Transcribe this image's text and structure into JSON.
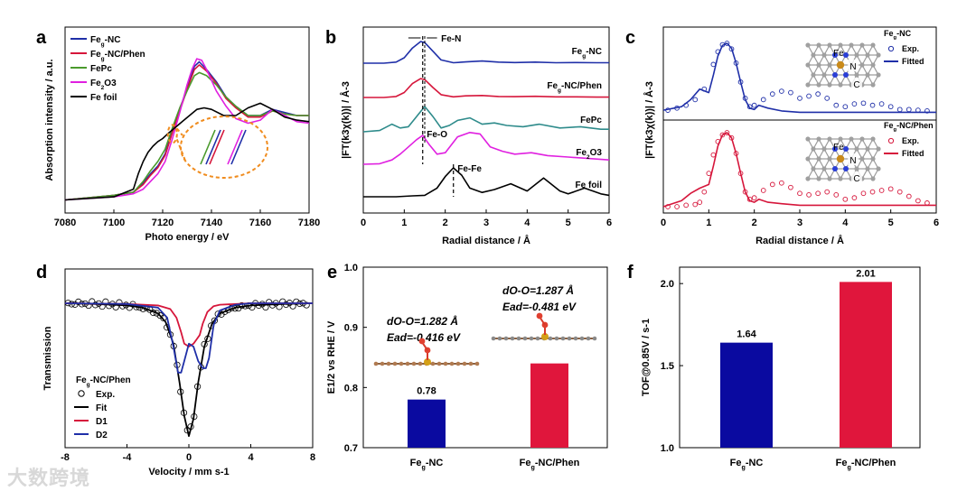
{
  "watermark": "大数跨境",
  "chart_data": [
    {
      "panel": "a",
      "type": "line",
      "xlabel": "Photo energy / eV",
      "ylabel": "Absorption intensity / a.u.",
      "xlim": [
        7080,
        7180
      ],
      "xticks": [
        7080,
        7100,
        7120,
        7140,
        7160,
        7180
      ],
      "legend_position": "top-left",
      "series": [
        {
          "name": "Feg-NC",
          "color": "#1f2fa8",
          "x": [
            7080,
            7100,
            7108,
            7112,
            7115,
            7118,
            7121,
            7124,
            7127,
            7130,
            7133,
            7135,
            7138,
            7142,
            7146,
            7150,
            7155,
            7160,
            7165,
            7170,
            7175,
            7180
          ],
          "y": [
            0.05,
            0.08,
            0.1,
            0.16,
            0.22,
            0.27,
            0.35,
            0.5,
            0.64,
            0.78,
            0.92,
            0.95,
            0.9,
            0.82,
            0.72,
            0.66,
            0.6,
            0.6,
            0.64,
            0.62,
            0.6,
            0.6
          ]
        },
        {
          "name": "Feg-NC/Phen",
          "color": "#d6163b",
          "x": [
            7080,
            7100,
            7108,
            7112,
            7115,
            7118,
            7121,
            7124,
            7127,
            7130,
            7133,
            7135,
            7138,
            7142,
            7146,
            7150,
            7155,
            7160,
            7165,
            7170,
            7175,
            7180
          ],
          "y": [
            0.05,
            0.08,
            0.1,
            0.15,
            0.21,
            0.26,
            0.34,
            0.49,
            0.63,
            0.77,
            0.9,
            0.93,
            0.89,
            0.81,
            0.71,
            0.65,
            0.59,
            0.59,
            0.63,
            0.61,
            0.6,
            0.6
          ]
        },
        {
          "name": "FePc",
          "color": "#4a9a2c",
          "x": [
            7080,
            7100,
            7108,
            7112,
            7115,
            7118,
            7121,
            7124,
            7127,
            7130,
            7133,
            7135,
            7138,
            7142,
            7146,
            7150,
            7155,
            7160,
            7165,
            7170,
            7175,
            7180
          ],
          "y": [
            0.05,
            0.08,
            0.1,
            0.17,
            0.24,
            0.3,
            0.38,
            0.52,
            0.65,
            0.76,
            0.86,
            0.88,
            0.86,
            0.8,
            0.72,
            0.66,
            0.6,
            0.6,
            0.63,
            0.61,
            0.6,
            0.6
          ]
        },
        {
          "name": "Fe2O3",
          "color": "#e020e0",
          "x": [
            7080,
            7100,
            7108,
            7112,
            7115,
            7118,
            7121,
            7124,
            7127,
            7130,
            7132,
            7134,
            7136,
            7138,
            7142,
            7146,
            7150,
            7155,
            7160,
            7165,
            7170,
            7175,
            7180
          ],
          "y": [
            0.05,
            0.07,
            0.09,
            0.12,
            0.17,
            0.22,
            0.3,
            0.45,
            0.62,
            0.8,
            0.9,
            0.97,
            0.96,
            0.9,
            0.76,
            0.66,
            0.58,
            0.55,
            0.57,
            0.64,
            0.6,
            0.56,
            0.55
          ]
        },
        {
          "name": "Fe foil",
          "color": "#000000",
          "x": [
            7080,
            7100,
            7108,
            7110,
            7112,
            7114,
            7116,
            7118,
            7120,
            7122,
            7125,
            7128,
            7131,
            7134,
            7137,
            7140,
            7145,
            7150,
            7155,
            7160,
            7165,
            7170,
            7175,
            7180
          ],
          "y": [
            0.05,
            0.07,
            0.12,
            0.22,
            0.3,
            0.36,
            0.4,
            0.43,
            0.45,
            0.48,
            0.52,
            0.56,
            0.6,
            0.64,
            0.65,
            0.64,
            0.6,
            0.6,
            0.65,
            0.68,
            0.64,
            0.59,
            0.57,
            0.56
          ]
        }
      ],
      "inset_annotation": true
    },
    {
      "panel": "b",
      "type": "line",
      "xlabel": "Radial distance / Å",
      "ylabel": "|FT(k3χ(k))| / Å-3",
      "xlim": [
        0,
        6
      ],
      "xticks": [
        0,
        1,
        2,
        3,
        4,
        5,
        6
      ],
      "annotations": [
        "Fe-N",
        "Fe-O",
        "Fe-Fe"
      ],
      "series": [
        {
          "name": "Feg-NC",
          "color": "#1f2fa8",
          "x": [
            0,
            0.5,
            0.8,
            1.0,
            1.2,
            1.4,
            1.5,
            1.7,
            1.9,
            2.2,
            2.5,
            2.9,
            3.3,
            3.7,
            4.2,
            4.7,
            5.2,
            5.7,
            6.0
          ],
          "y": [
            0,
            0,
            0.05,
            0.25,
            0.7,
            1.0,
            0.95,
            0.55,
            0.15,
            0.02,
            0.06,
            0.1,
            0.05,
            0.03,
            0.05,
            0.02,
            0.03,
            0.02,
            0.02
          ]
        },
        {
          "name": "Feg-NC/Phen",
          "color": "#d6163b",
          "x": [
            0,
            0.5,
            0.8,
            1.0,
            1.2,
            1.4,
            1.5,
            1.7,
            1.9,
            2.2,
            2.5,
            2.9,
            3.3,
            3.7,
            4.2,
            4.7,
            5.2,
            5.7,
            6.0
          ],
          "y": [
            0,
            0,
            0.05,
            0.25,
            0.7,
            0.95,
            0.9,
            0.5,
            0.14,
            0.03,
            0.08,
            0.1,
            0.05,
            0.04,
            0.06,
            0.03,
            0.03,
            0.02,
            0.02
          ]
        },
        {
          "name": "FePc",
          "color": "#2e8b8b",
          "x": [
            0,
            0.4,
            0.7,
            0.9,
            1.1,
            1.3,
            1.5,
            1.7,
            1.9,
            2.1,
            2.3,
            2.6,
            2.9,
            3.2,
            3.5,
            3.9,
            4.3,
            4.8,
            5.3,
            5.8,
            6.0
          ],
          "y": [
            0,
            0.05,
            0.3,
            0.15,
            0.2,
            0.6,
            1.0,
            0.6,
            0.15,
            0.25,
            0.45,
            0.55,
            0.3,
            0.35,
            0.25,
            0.2,
            0.3,
            0.15,
            0.2,
            0.1,
            0.1
          ]
        },
        {
          "name": "Fe2O3",
          "color": "#e020e0",
          "x": [
            0,
            0.4,
            0.7,
            0.9,
            1.1,
            1.3,
            1.45,
            1.6,
            1.8,
            2.0,
            2.3,
            2.6,
            2.85,
            3.1,
            3.4,
            3.7,
            4.1,
            4.5,
            5.0,
            5.5,
            6.0
          ],
          "y": [
            0,
            0.02,
            0.15,
            0.35,
            0.6,
            0.85,
            1.0,
            0.7,
            0.35,
            0.4,
            0.95,
            1.1,
            1.05,
            0.6,
            0.45,
            0.35,
            0.4,
            0.3,
            0.25,
            0.2,
            0.15
          ]
        },
        {
          "name": "Fe foil",
          "color": "#000000",
          "x": [
            0,
            0.8,
            1.2,
            1.5,
            1.8,
            2.0,
            2.2,
            2.4,
            2.6,
            2.9,
            3.2,
            3.6,
            4.0,
            4.4,
            4.8,
            5.0,
            5.4,
            5.8,
            6.0
          ],
          "y": [
            0,
            0,
            0.03,
            0.05,
            0.3,
            0.7,
            1.0,
            0.75,
            0.3,
            0.15,
            0.25,
            0.45,
            0.2,
            0.65,
            0.2,
            0.1,
            0.3,
            0.1,
            0.05
          ]
        }
      ]
    },
    {
      "panel": "c",
      "type": "line",
      "xlabel": "Radial distance / Å",
      "ylabel": "|FT(k3χ(k))| / Å-3",
      "xlim": [
        0,
        6
      ],
      "xticks": [
        0,
        1,
        2,
        3,
        4,
        5,
        6
      ],
      "subpanels": [
        {
          "title": "Feg-NC",
          "legend": [
            "Exp.",
            "Fitted"
          ],
          "color": "#1f2fa8",
          "molecule_labels": [
            "Fe",
            "N",
            "C"
          ],
          "exp_x": [
            0.1,
            0.3,
            0.5,
            0.7,
            0.9,
            1.1,
            1.2,
            1.3,
            1.4,
            1.5,
            1.6,
            1.7,
            1.8,
            1.9,
            2.0,
            2.2,
            2.4,
            2.6,
            2.8,
            3.0,
            3.2,
            3.4,
            3.6,
            3.8,
            4.0,
            4.2,
            4.4,
            4.6,
            4.8,
            5.0,
            5.2,
            5.4,
            5.6,
            5.8
          ],
          "exp_y": [
            0.05,
            0.08,
            0.12,
            0.2,
            0.35,
            0.7,
            0.88,
            0.98,
            1.0,
            0.92,
            0.72,
            0.45,
            0.22,
            0.1,
            0.12,
            0.2,
            0.28,
            0.32,
            0.3,
            0.22,
            0.25,
            0.28,
            0.22,
            0.12,
            0.1,
            0.14,
            0.15,
            0.12,
            0.14,
            0.1,
            0.06,
            0.06,
            0.05,
            0.04
          ],
          "fit_x": [
            0,
            0.4,
            0.6,
            0.8,
            1.0,
            1.1,
            1.2,
            1.3,
            1.4,
            1.5,
            1.6,
            1.7,
            1.8,
            1.9,
            2.0,
            2.1,
            2.3,
            2.6,
            3.0,
            3.5,
            4.0,
            5.0,
            6.0
          ],
          "fit_y": [
            0.05,
            0.1,
            0.2,
            0.35,
            0.3,
            0.55,
            0.82,
            0.97,
            1.0,
            0.93,
            0.72,
            0.45,
            0.2,
            0.08,
            0.06,
            0.12,
            0.08,
            0.04,
            0.02,
            0.02,
            0.02,
            0.02,
            0.02
          ]
        },
        {
          "title": "Feg-NC/Phen",
          "legend": [
            "Exp.",
            "Fitted"
          ],
          "color": "#d6163b",
          "molecule_labels": [
            "Fe",
            "N",
            "C"
          ],
          "exp_x": [
            0.1,
            0.3,
            0.5,
            0.7,
            0.8,
            0.9,
            1.0,
            1.1,
            1.2,
            1.3,
            1.4,
            1.5,
            1.6,
            1.7,
            1.8,
            1.9,
            2.0,
            2.2,
            2.4,
            2.6,
            2.8,
            3.0,
            3.2,
            3.4,
            3.6,
            3.8,
            4.0,
            4.2,
            4.4,
            4.6,
            4.8,
            5.0,
            5.2,
            5.4,
            5.6,
            5.8
          ],
          "exp_y": [
            0.0,
            0.0,
            0.02,
            0.03,
            0.06,
            0.2,
            0.45,
            0.7,
            0.88,
            0.97,
            1.0,
            0.93,
            0.72,
            0.45,
            0.2,
            0.1,
            0.12,
            0.22,
            0.3,
            0.32,
            0.26,
            0.18,
            0.16,
            0.18,
            0.2,
            0.16,
            0.1,
            0.12,
            0.18,
            0.2,
            0.22,
            0.24,
            0.2,
            0.14,
            0.08,
            0.05
          ],
          "fit_x": [
            0,
            0.4,
            0.6,
            0.8,
            1.0,
            1.1,
            1.2,
            1.3,
            1.4,
            1.5,
            1.6,
            1.7,
            1.8,
            1.9,
            2.0,
            2.1,
            2.3,
            2.6,
            3.0,
            3.5,
            4.0,
            5.0,
            6.0
          ],
          "fit_y": [
            0.0,
            0.08,
            0.18,
            0.25,
            0.3,
            0.55,
            0.82,
            0.97,
            1.0,
            0.93,
            0.72,
            0.45,
            0.2,
            0.08,
            0.06,
            0.1,
            0.06,
            0.04,
            0.02,
            0.02,
            0.02,
            0.02,
            0.02
          ]
        }
      ]
    },
    {
      "panel": "d",
      "type": "line",
      "xlabel": "Velocity / mm s-1",
      "ylabel": "Transmission",
      "xlim": [
        -8,
        8
      ],
      "xticks": [
        -8,
        -4,
        0,
        4,
        8
      ],
      "legend_title": "Feg-NC/Phen",
      "series": [
        {
          "name": "Exp.",
          "style": "open-circles",
          "color": "#000000"
        },
        {
          "name": "Fit",
          "color": "#000000",
          "x": [
            -8,
            -6,
            -4,
            -3,
            -2,
            -1.5,
            -1,
            -0.6,
            -0.3,
            0,
            0.3,
            0.6,
            1,
            1.5,
            2,
            3,
            4,
            6,
            8
          ],
          "y": [
            1.0,
            0.995,
            0.985,
            0.97,
            0.93,
            0.87,
            0.72,
            0.45,
            0.22,
            0.08,
            0.2,
            0.45,
            0.7,
            0.86,
            0.93,
            0.97,
            0.985,
            0.995,
            1.0
          ]
        },
        {
          "name": "D1",
          "color": "#d6163b",
          "x": [
            -8,
            -4,
            -2,
            -1.2,
            -0.8,
            -0.5,
            -0.3,
            0,
            0.3,
            0.5,
            0.7,
            0.9,
            1.2,
            1.6,
            2,
            4,
            8
          ],
          "y": [
            1.0,
            0.995,
            0.985,
            0.96,
            0.9,
            0.8,
            0.72,
            0.7,
            0.72,
            0.75,
            0.78,
            0.86,
            0.94,
            0.98,
            0.99,
            1.0,
            1.0
          ]
        },
        {
          "name": "D2",
          "color": "#1f2fa8",
          "x": [
            -8,
            -4,
            -2,
            -1.4,
            -1,
            -0.7,
            -0.5,
            -0.3,
            0,
            0.3,
            0.6,
            0.9,
            1.1,
            1.3,
            1.6,
            2,
            3,
            4,
            8
          ],
          "y": [
            1.0,
            0.995,
            0.97,
            0.9,
            0.7,
            0.52,
            0.52,
            0.6,
            0.72,
            0.7,
            0.6,
            0.55,
            0.55,
            0.62,
            0.85,
            0.95,
            0.99,
            1.0,
            1.0
          ]
        }
      ]
    },
    {
      "panel": "e",
      "type": "bar",
      "categories": [
        "Feg-NC",
        "Feg-NC/Phen"
      ],
      "values": [
        0.78,
        0.84
      ],
      "colors": [
        "#0a0aa0",
        "#e0163c"
      ],
      "data_labels": [
        "0.78",
        ""
      ],
      "ylabel": "E1/2 vs RHE / V",
      "ylim": [
        0.7,
        1.0
      ],
      "yticks": [
        "0.7",
        "0.8",
        "0.9",
        "1.0"
      ],
      "annotations": [
        {
          "line1": "dO-O=1.282 Å",
          "line2": "Ead=-0.416 eV"
        },
        {
          "line1": "dO-O=1.287 Å",
          "line2": "Ead=-0.481 eV"
        }
      ]
    },
    {
      "panel": "f",
      "type": "bar",
      "categories": [
        "Feg-NC",
        "Feg-NC/Phen"
      ],
      "values": [
        1.64,
        2.01
      ],
      "colors": [
        "#0a0aa0",
        "#e0163c"
      ],
      "data_labels": [
        "1.64",
        "2.01"
      ],
      "ylabel": "TOF@0.85V / s-1",
      "ylim": [
        1.0,
        2.1
      ],
      "yticks": [
        "1.0",
        "1.5",
        "2.0"
      ]
    }
  ],
  "panel_letters": [
    "a",
    "b",
    "c",
    "d",
    "e",
    "f"
  ]
}
